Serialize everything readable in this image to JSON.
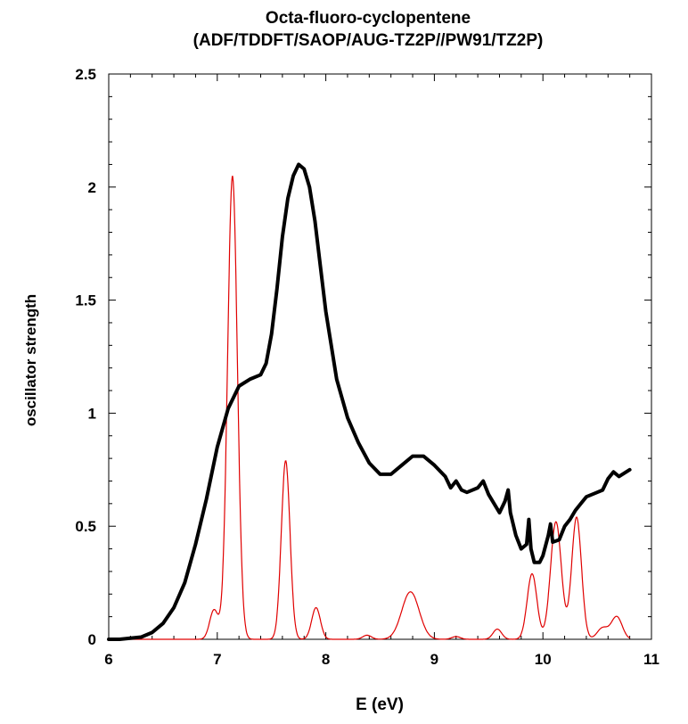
{
  "chart_data": {
    "type": "line",
    "title": "Octa-fluoro-cyclopentene",
    "subtitle": "(ADF/TDDFT/SAOP/AUG-TZ2P//PW91/TZ2P)",
    "xlabel": "E (eV)",
    "ylabel": "oscillator strength",
    "xlim": [
      6,
      11
    ],
    "ylim": [
      0,
      2.5
    ],
    "x_ticks": [
      6,
      7,
      8,
      9,
      10,
      11
    ],
    "x_tick_labels": [
      "6",
      "7",
      "8",
      "9",
      "10",
      "11"
    ],
    "y_ticks": [
      0,
      0.5,
      1,
      1.5,
      2,
      2.5
    ],
    "y_tick_labels": [
      "0",
      "0.5",
      "1",
      "1.5",
      "2",
      "2.5"
    ],
    "grid": false,
    "series": [
      {
        "color": "#000000",
        "style": "thick",
        "points": [
          [
            6.0,
            0.0
          ],
          [
            6.1,
            0.0
          ],
          [
            6.2,
            0.005
          ],
          [
            6.3,
            0.01
          ],
          [
            6.4,
            0.03
          ],
          [
            6.5,
            0.07
          ],
          [
            6.6,
            0.14
          ],
          [
            6.7,
            0.25
          ],
          [
            6.8,
            0.42
          ],
          [
            6.9,
            0.62
          ],
          [
            7.0,
            0.85
          ],
          [
            7.1,
            1.02
          ],
          [
            7.2,
            1.12
          ],
          [
            7.3,
            1.15
          ],
          [
            7.4,
            1.17
          ],
          [
            7.45,
            1.22
          ],
          [
            7.5,
            1.35
          ],
          [
            7.55,
            1.55
          ],
          [
            7.6,
            1.78
          ],
          [
            7.65,
            1.95
          ],
          [
            7.7,
            2.05
          ],
          [
            7.75,
            2.1
          ],
          [
            7.8,
            2.08
          ],
          [
            7.85,
            2.0
          ],
          [
            7.9,
            1.85
          ],
          [
            7.95,
            1.65
          ],
          [
            8.0,
            1.45
          ],
          [
            8.1,
            1.15
          ],
          [
            8.2,
            0.98
          ],
          [
            8.3,
            0.87
          ],
          [
            8.4,
            0.78
          ],
          [
            8.5,
            0.73
          ],
          [
            8.6,
            0.73
          ],
          [
            8.7,
            0.77
          ],
          [
            8.8,
            0.81
          ],
          [
            8.9,
            0.81
          ],
          [
            9.0,
            0.77
          ],
          [
            9.1,
            0.72
          ],
          [
            9.15,
            0.67
          ],
          [
            9.2,
            0.7
          ],
          [
            9.25,
            0.66
          ],
          [
            9.3,
            0.65
          ],
          [
            9.4,
            0.67
          ],
          [
            9.45,
            0.7
          ],
          [
            9.5,
            0.64
          ],
          [
            9.6,
            0.56
          ],
          [
            9.65,
            0.61
          ],
          [
            9.68,
            0.66
          ],
          [
            9.7,
            0.56
          ],
          [
            9.75,
            0.46
          ],
          [
            9.8,
            0.4
          ],
          [
            9.85,
            0.42
          ],
          [
            9.87,
            0.53
          ],
          [
            9.89,
            0.4
          ],
          [
            9.92,
            0.34
          ],
          [
            9.97,
            0.34
          ],
          [
            10.0,
            0.37
          ],
          [
            10.05,
            0.46
          ],
          [
            10.07,
            0.51
          ],
          [
            10.09,
            0.43
          ],
          [
            10.15,
            0.44
          ],
          [
            10.2,
            0.5
          ],
          [
            10.25,
            0.53
          ],
          [
            10.3,
            0.57
          ],
          [
            10.35,
            0.6
          ],
          [
            10.4,
            0.63
          ],
          [
            10.5,
            0.65
          ],
          [
            10.55,
            0.66
          ],
          [
            10.6,
            0.71
          ],
          [
            10.65,
            0.74
          ],
          [
            10.7,
            0.72
          ],
          [
            10.8,
            0.75
          ]
        ]
      },
      {
        "color": "#e00000",
        "style": "thin",
        "peaks": [
          {
            "x": 6.97,
            "y": 0.13,
            "w": 0.04
          },
          {
            "x": 7.14,
            "y": 2.05,
            "w": 0.045
          },
          {
            "x": 7.63,
            "y": 0.79,
            "w": 0.04
          },
          {
            "x": 7.91,
            "y": 0.14,
            "w": 0.04
          },
          {
            "x": 8.38,
            "y": 0.018,
            "w": 0.04
          },
          {
            "x": 8.78,
            "y": 0.21,
            "w": 0.08
          },
          {
            "x": 9.2,
            "y": 0.012,
            "w": 0.04
          },
          {
            "x": 9.58,
            "y": 0.045,
            "w": 0.04
          },
          {
            "x": 9.9,
            "y": 0.29,
            "w": 0.045
          },
          {
            "x": 10.12,
            "y": 0.52,
            "w": 0.05
          },
          {
            "x": 10.31,
            "y": 0.54,
            "w": 0.045
          },
          {
            "x": 10.55,
            "y": 0.05,
            "w": 0.05
          },
          {
            "x": 10.68,
            "y": 0.1,
            "w": 0.05
          }
        ]
      }
    ]
  }
}
